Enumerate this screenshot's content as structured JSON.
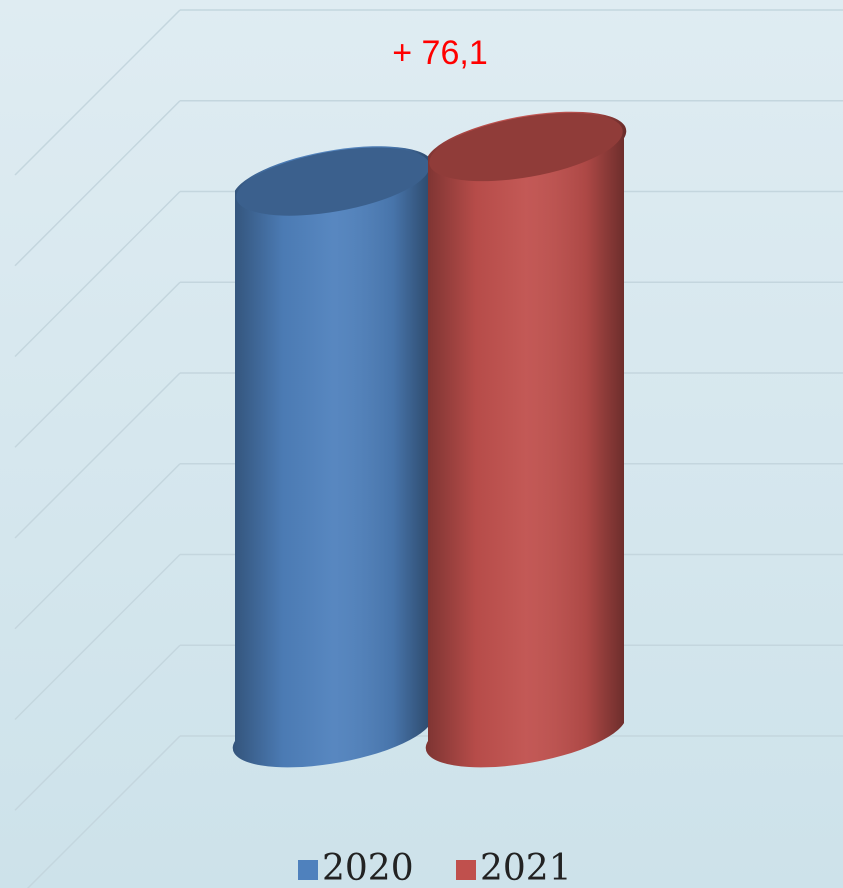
{
  "chart_data": {
    "type": "bar3d",
    "annotation": "+ 76,1",
    "series": [
      {
        "name": "2020",
        "color": "#4f81bd",
        "values": [
          1213
        ]
      },
      {
        "name": "2021",
        "color": "#c0504d",
        "values": [
          1289.1
        ]
      }
    ],
    "ylim": [
      0,
      1600
    ],
    "yticks": [
      0,
      200,
      400,
      600,
      800,
      1000,
      1200,
      1400,
      1600
    ],
    "grid": true,
    "legend": "bottom"
  }
}
